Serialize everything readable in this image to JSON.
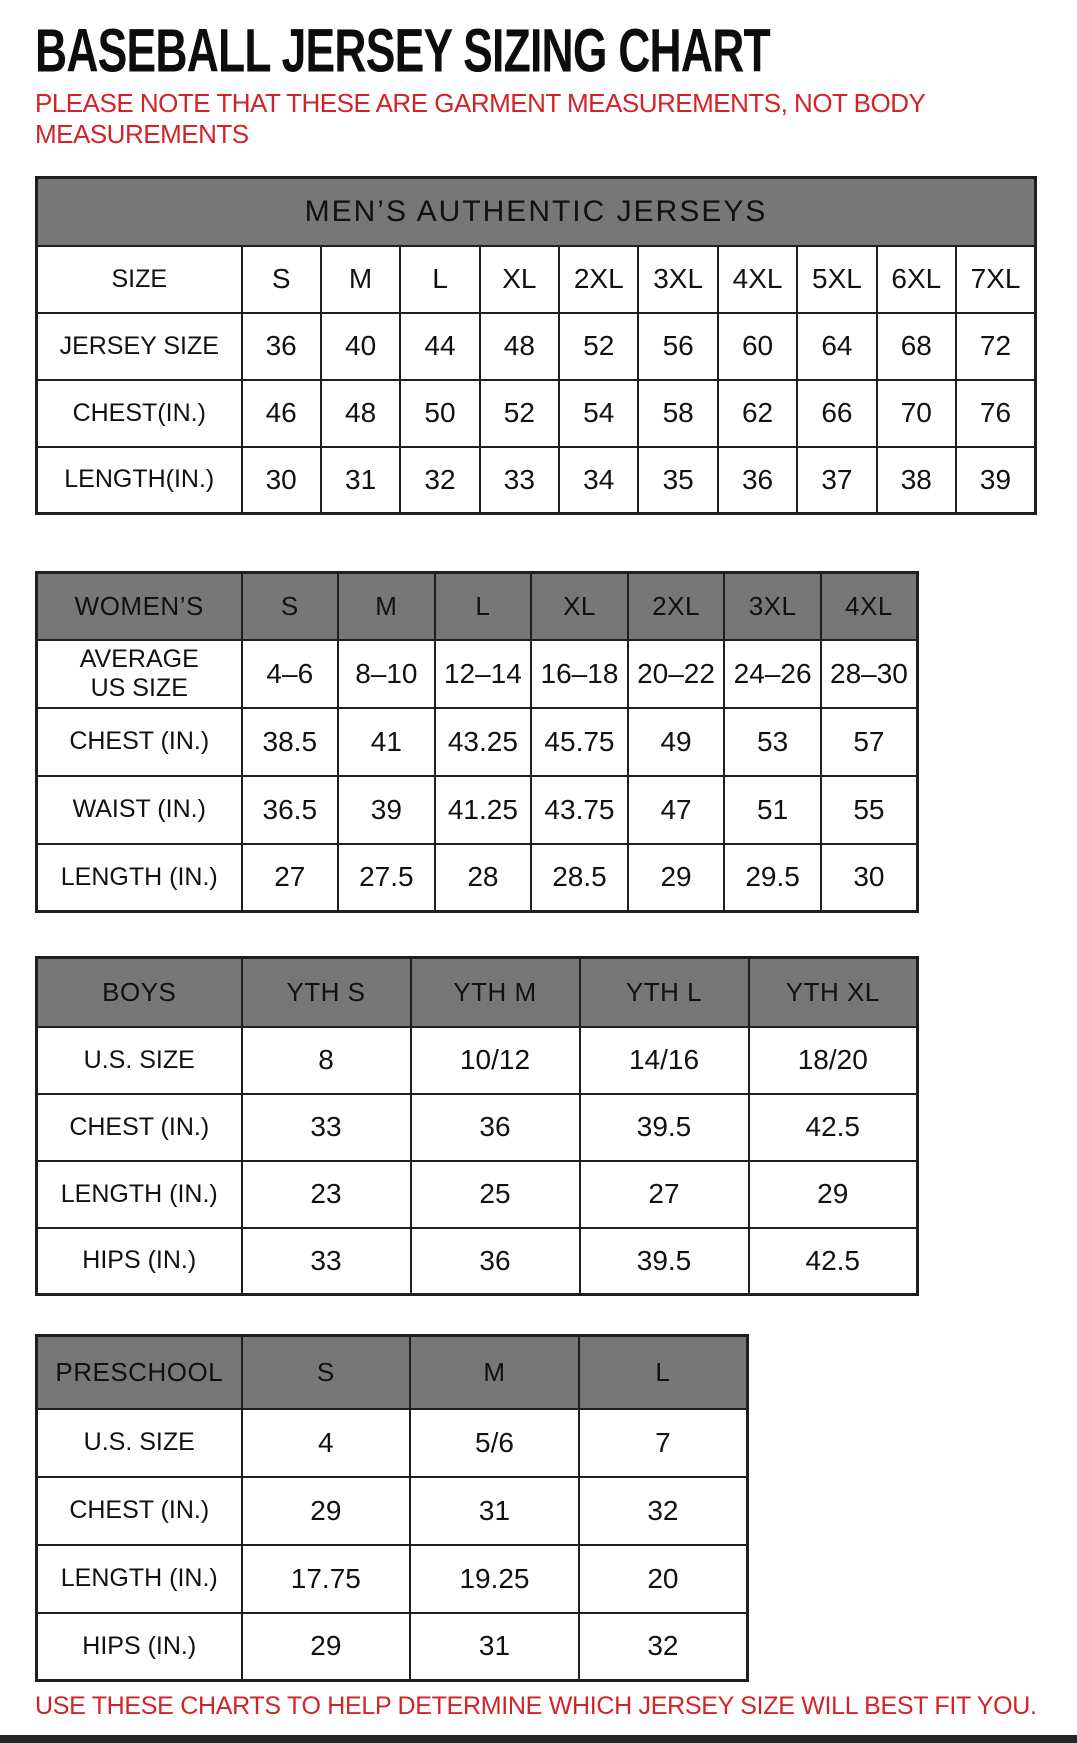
{
  "page": {
    "title": "BASEBALL JERSEY SIZING CHART",
    "note": "PLEASE NOTE THAT THESE ARE GARMENT MEASUREMENTS, NOT BODY MEASUREMENTS",
    "footer": "USE THESE CHARTS TO HELP DETERMINE WHICH JERSEY SIZE WILL BEST FIT YOU.",
    "colors": {
      "header_gray": "#777777",
      "accent_red": "#d22329",
      "border_black": "#1f1f1f"
    }
  },
  "tables": [
    {
      "id": "mens",
      "banner": "MEN’S AUTHENTIC JERSEYS",
      "rows": [
        {
          "label": "SIZE",
          "values": [
            "S",
            "M",
            "L",
            "XL",
            "2XL",
            "3XL",
            "4XL",
            "5XL",
            "6XL",
            "7XL"
          ]
        },
        {
          "label": "JERSEY SIZE",
          "values": [
            "36",
            "40",
            "44",
            "48",
            "52",
            "56",
            "60",
            "64",
            "68",
            "72"
          ]
        },
        {
          "label": "CHEST(IN.)",
          "values": [
            "46",
            "48",
            "50",
            "52",
            "54",
            "58",
            "62",
            "66",
            "70",
            "76"
          ]
        },
        {
          "label": "LENGTH(IN.)",
          "values": [
            "30",
            "31",
            "32",
            "33",
            "34",
            "35",
            "36",
            "37",
            "38",
            "39"
          ]
        }
      ]
    },
    {
      "id": "womens",
      "header": {
        "label": "WOMEN’S",
        "cols": [
          "S",
          "M",
          "L",
          "XL",
          "2XL",
          "3XL",
          "4XL"
        ]
      },
      "rows": [
        {
          "label": "AVERAGE\nUS SIZE",
          "values": [
            "4–6",
            "8–10",
            "12–14",
            "16–18",
            "20–22",
            "24–26",
            "28–30"
          ]
        },
        {
          "label": "CHEST (IN.)",
          "values": [
            "38.5",
            "41",
            "43.25",
            "45.75",
            "49",
            "53",
            "57"
          ]
        },
        {
          "label": "WAIST (IN.)",
          "values": [
            "36.5",
            "39",
            "41.25",
            "43.75",
            "47",
            "51",
            "55"
          ]
        },
        {
          "label": "LENGTH (IN.)",
          "values": [
            "27",
            "27.5",
            "28",
            "28.5",
            "29",
            "29.5",
            "30"
          ]
        }
      ]
    },
    {
      "id": "boys",
      "header": {
        "label": "BOYS",
        "cols": [
          "YTH S",
          "YTH M",
          "YTH L",
          "YTH XL"
        ]
      },
      "rows": [
        {
          "label": "U.S. SIZE",
          "values": [
            "8",
            "10/12",
            "14/16",
            "18/20"
          ]
        },
        {
          "label": "CHEST (IN.)",
          "values": [
            "33",
            "36",
            "39.5",
            "42.5"
          ]
        },
        {
          "label": "LENGTH (IN.)",
          "values": [
            "23",
            "25",
            "27",
            "29"
          ]
        },
        {
          "label": "HIPS (IN.)",
          "values": [
            "33",
            "36",
            "39.5",
            "42.5"
          ]
        }
      ]
    },
    {
      "id": "preschool",
      "header": {
        "label": "PRESCHOOL",
        "cols": [
          "S",
          "M",
          "L"
        ]
      },
      "rows": [
        {
          "label": "U.S. SIZE",
          "values": [
            "4",
            "5/6",
            "7"
          ]
        },
        {
          "label": "CHEST (IN.)",
          "values": [
            "29",
            "31",
            "32"
          ]
        },
        {
          "label": "LENGTH (IN.)",
          "values": [
            "17.75",
            "19.25",
            "20"
          ]
        },
        {
          "label": "HIPS (IN.)",
          "values": [
            "29",
            "31",
            "32"
          ]
        }
      ]
    }
  ]
}
